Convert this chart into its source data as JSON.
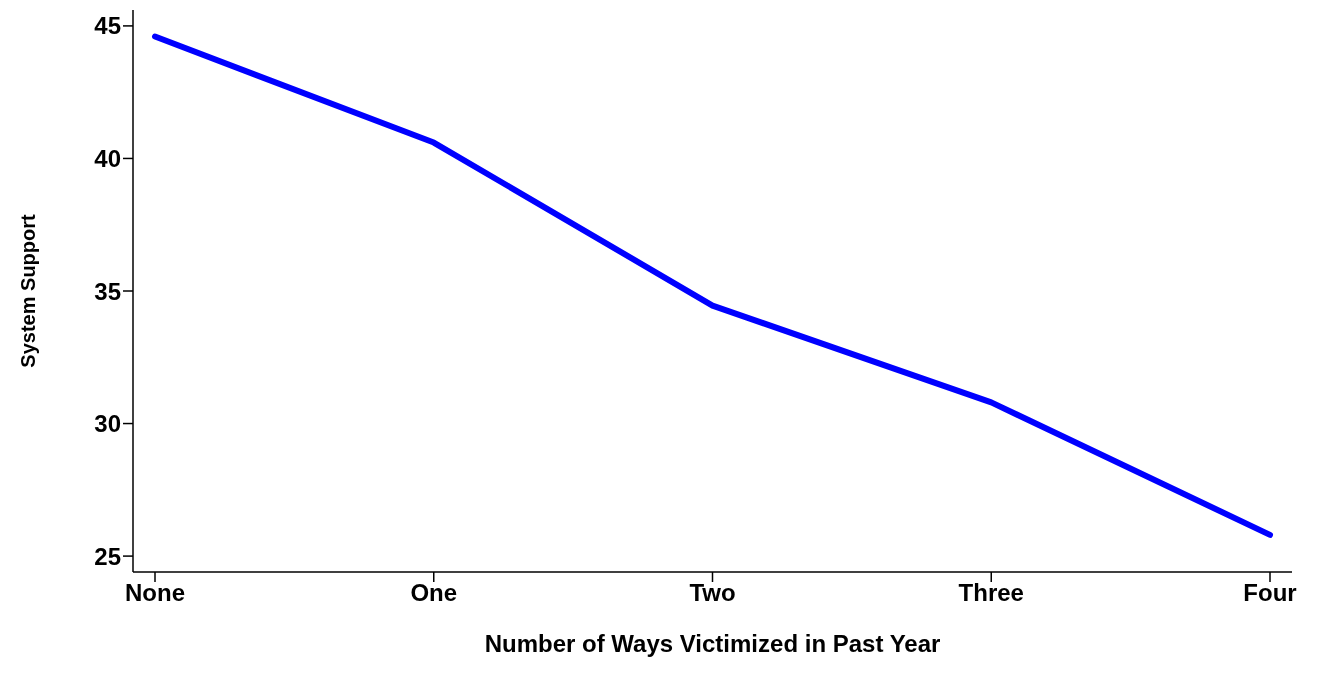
{
  "chart_data": {
    "type": "line",
    "xlabel": "Number of Ways Victimized in Past Year",
    "ylabel": "System Support",
    "categories": [
      "None",
      "One",
      "Two",
      "Three",
      "Four"
    ],
    "series": [
      {
        "color": "#0000ff",
        "values": [
          44.6,
          40.6,
          34.45,
          30.8,
          25.8
        ]
      }
    ],
    "ylim": [
      24.4,
      45.6
    ],
    "yticks": [
      25,
      30,
      35,
      40,
      45
    ],
    "grid": false,
    "legend": false,
    "marker": "none",
    "line_style": "solid"
  }
}
